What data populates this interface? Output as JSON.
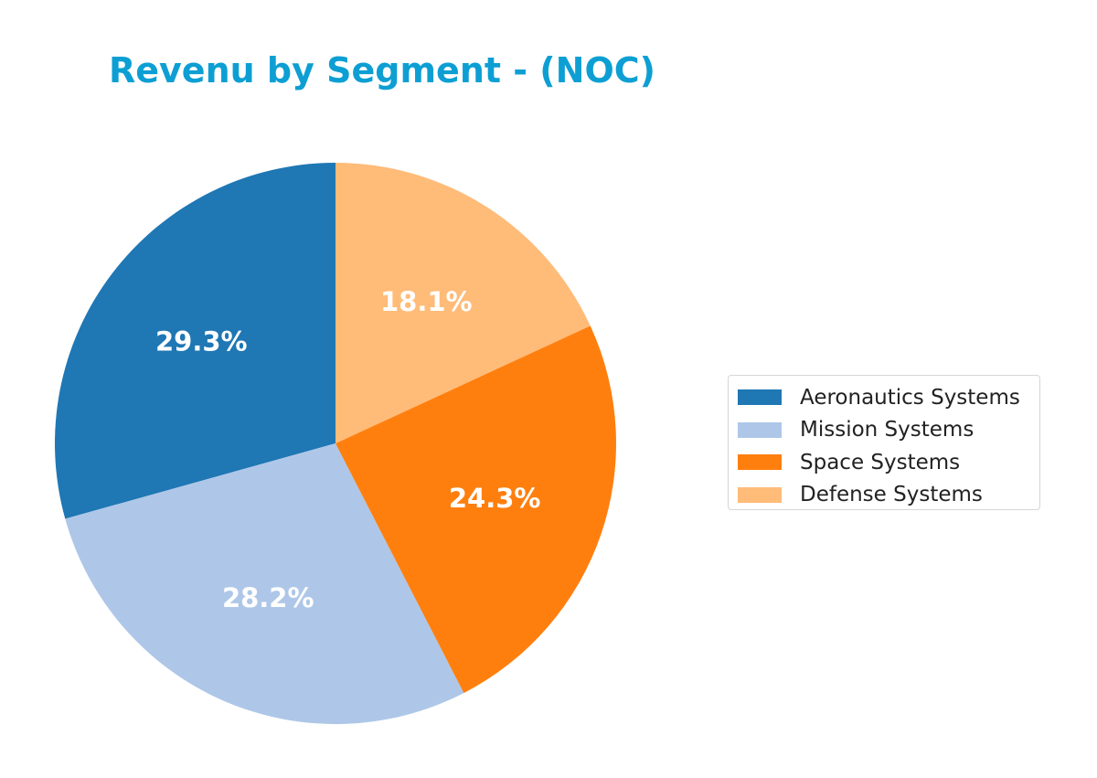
{
  "chart_data": {
    "type": "pie",
    "title": "Revenu by Segment - (NOC)",
    "categories": [
      "Aeronautics Systems",
      "Mission Systems",
      "Space Systems",
      "Defense Systems"
    ],
    "values": [
      29.3,
      28.2,
      24.3,
      18.1
    ],
    "value_labels": [
      "29.3%",
      "28.2%",
      "24.3%",
      "18.1%"
    ],
    "colors": [
      "#1f77b4",
      "#aec7e8",
      "#ff7f0e",
      "#ffbb78"
    ],
    "start_angle_deg": 90,
    "direction": "counterclockwise",
    "legend_position": "right"
  },
  "theme": {
    "title_color": "#0d9fd3"
  }
}
